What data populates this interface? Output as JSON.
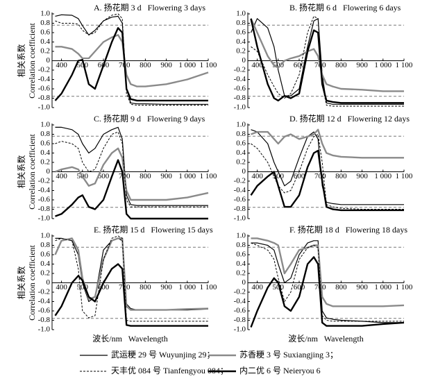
{
  "chart_data": [
    {
      "type": "line",
      "title": "A. 扬花期 3 d   Flowering 3 days",
      "ylabel_cn": "相关系数",
      "ylabel_en": "Correlation coefficient",
      "x": [
        370,
        400,
        450,
        480,
        500,
        530,
        560,
        600,
        640,
        670,
        690,
        710,
        730,
        760,
        800,
        900,
        1000,
        1100
      ],
      "series": [
        {
          "values": [
            0.95,
            0.98,
            0.97,
            0.9,
            0.75,
            0.55,
            0.65,
            0.85,
            0.93,
            0.95,
            0.8,
            -0.6,
            -0.9,
            -0.92,
            -0.92,
            -0.93,
            -0.93,
            -0.93
          ]
        },
        {
          "values": [
            0.3,
            0.3,
            0.25,
            0.15,
            0.05,
            0.05,
            0.2,
            0.4,
            0.5,
            0.55,
            0.4,
            -0.3,
            -0.5,
            -0.55,
            -0.55,
            -0.5,
            -0.4,
            -0.25
          ]
        },
        {
          "values": [
            0.85,
            0.8,
            0.8,
            0.78,
            0.65,
            0.55,
            0.6,
            0.85,
            0.97,
            1.0,
            0.9,
            -0.7,
            -0.93,
            -0.95,
            -0.95,
            -0.95,
            -0.95,
            -0.95
          ]
        },
        {
          "values": [
            -0.85,
            -0.7,
            -0.3,
            0.0,
            0.02,
            -0.5,
            -0.6,
            -0.1,
            0.4,
            0.7,
            0.6,
            -0.6,
            -0.82,
            -0.85,
            -0.85,
            -0.85,
            -0.85,
            -0.85
          ]
        }
      ],
      "ref_lines": [
        0.76,
        -0.76
      ],
      "xlim": [
        355,
        1100
      ],
      "ylim": [
        -1,
        1
      ],
      "xticks": [
        400,
        500,
        600,
        700,
        800,
        900,
        {
          "value": 1000,
          "label": "1 000"
        },
        {
          "value": 1100,
          "label": "1 100"
        }
      ],
      "yticks": [
        {
          "value": 1,
          "label": "1.0"
        },
        0.8,
        0.6,
        0.4,
        0.2,
        0,
        -0.2,
        -0.4,
        -0.6,
        -0.8,
        {
          "value": -1,
          "label": "-1.0"
        }
      ]
    },
    {
      "type": "line",
      "title": "B. 扬花期 6 d   Flowering 6 days",
      "x": [
        370,
        400,
        450,
        480,
        500,
        530,
        560,
        600,
        640,
        670,
        690,
        710,
        730,
        760,
        800,
        900,
        1000,
        1100
      ],
      "series": [
        {
          "values": [
            0.6,
            0.9,
            0.7,
            0.3,
            -0.2,
            -0.75,
            -0.75,
            -0.6,
            0.3,
            0.85,
            0.9,
            -0.3,
            -0.9,
            -0.93,
            -0.93,
            -0.93,
            -0.93,
            -0.93
          ]
        },
        {
          "values": [
            0.9,
            0.6,
            0.1,
            -0.1,
            -0.15,
            0.0,
            0.05,
            0.1,
            0.2,
            0.25,
            0.1,
            -0.3,
            -0.5,
            -0.55,
            -0.6,
            -0.62,
            -0.65,
            -0.65
          ]
        },
        {
          "values": [
            0.3,
            0.2,
            -0.3,
            -0.55,
            -0.7,
            -0.8,
            -0.7,
            -0.3,
            0.6,
            0.95,
            0.9,
            -0.5,
            -0.95,
            -0.97,
            -0.97,
            -0.97,
            -0.97,
            -0.97
          ]
        },
        {
          "values": [
            0.9,
            0.3,
            -0.5,
            -0.8,
            -0.85,
            -0.75,
            -0.8,
            -0.7,
            0.2,
            0.65,
            0.6,
            -0.5,
            -0.85,
            -0.88,
            -0.9,
            -0.9,
            -0.9,
            -0.9
          ]
        }
      ],
      "ref_lines": [
        0.76,
        -0.76
      ],
      "xlim": [
        355,
        1100
      ],
      "ylim": [
        -1,
        1
      ],
      "xticks": [
        400,
        500,
        600,
        700,
        800,
        900,
        {
          "value": 1000,
          "label": "1 000"
        },
        {
          "value": 1100,
          "label": "1 100"
        }
      ],
      "yticks": [
        {
          "value": 1,
          "label": "1.0"
        },
        0.8,
        0.6,
        0.4,
        0.2,
        0,
        -0.2,
        -0.4,
        -0.6,
        -0.8,
        {
          "value": -1,
          "label": "-1.0"
        }
      ]
    },
    {
      "type": "line",
      "title": "C. 扬花期 9 d   Flowering 9 days",
      "ylabel_cn": "相关系数",
      "ylabel_en": "Correlation coefficient",
      "x": [
        370,
        400,
        450,
        480,
        500,
        530,
        560,
        600,
        640,
        670,
        690,
        710,
        730,
        760,
        800,
        900,
        1000,
        1100
      ],
      "series": [
        {
          "values": [
            0.95,
            0.95,
            0.9,
            0.8,
            0.6,
            0.4,
            0.5,
            0.8,
            0.9,
            0.95,
            0.7,
            -0.5,
            -0.7,
            -0.72,
            -0.72,
            -0.72,
            -0.72,
            -0.72
          ]
        },
        {
          "values": [
            0.0,
            0.05,
            0.1,
            0.05,
            -0.1,
            -0.3,
            -0.25,
            0.15,
            0.4,
            0.5,
            0.3,
            -0.4,
            -0.6,
            -0.6,
            -0.6,
            -0.6,
            -0.55,
            -0.45
          ]
        },
        {
          "values": [
            0.6,
            0.65,
            0.6,
            0.5,
            0.2,
            0.0,
            0.05,
            0.5,
            0.8,
            0.85,
            0.6,
            -0.6,
            -0.75,
            -0.75,
            -0.75,
            -0.75,
            -0.75,
            -0.75
          ]
        },
        {
          "values": [
            -0.95,
            -0.9,
            -0.7,
            -0.55,
            -0.5,
            -0.75,
            -0.8,
            -0.6,
            -0.1,
            0.25,
            0.0,
            -0.9,
            -1.0,
            -1.0,
            -1.0,
            -1.0,
            -1.0,
            -1.0
          ]
        }
      ],
      "ref_lines": [
        0.76,
        -0.76
      ],
      "xlim": [
        355,
        1100
      ],
      "ylim": [
        -1,
        1
      ],
      "xticks": [
        400,
        500,
        600,
        700,
        800,
        900,
        {
          "value": 1000,
          "label": "1 000"
        },
        {
          "value": 1100,
          "label": "1 100"
        }
      ],
      "yticks": [
        {
          "value": 1,
          "label": "1.0"
        },
        0.8,
        0.6,
        0.4,
        0.2,
        0,
        -0.2,
        -0.4,
        -0.6,
        -0.8,
        {
          "value": -1,
          "label": "-1.0"
        }
      ]
    },
    {
      "type": "line",
      "title": "D. 扬花期 12 d   Flowering 12 days",
      "x": [
        370,
        400,
        450,
        480,
        500,
        530,
        560,
        600,
        640,
        670,
        690,
        710,
        730,
        760,
        800,
        900,
        1000,
        1100
      ],
      "series": [
        {
          "values": [
            0.9,
            0.85,
            0.6,
            0.2,
            0.0,
            -0.3,
            -0.2,
            0.3,
            0.75,
            0.85,
            0.7,
            -0.3,
            -0.65,
            -0.68,
            -0.7,
            -0.7,
            -0.7,
            -0.7
          ]
        },
        {
          "values": [
            0.8,
            0.85,
            0.85,
            0.7,
            0.6,
            0.75,
            0.8,
            0.7,
            0.75,
            0.8,
            0.9,
            0.6,
            0.4,
            0.35,
            0.32,
            0.3,
            0.3,
            0.3
          ]
        },
        {
          "values": [
            0.6,
            0.5,
            0.2,
            -0.1,
            -0.3,
            -0.45,
            -0.4,
            0.0,
            0.5,
            0.75,
            0.8,
            0.2,
            -0.7,
            -0.75,
            -0.78,
            -0.8,
            -0.8,
            -0.8
          ]
        },
        {
          "values": [
            -0.5,
            -0.3,
            -0.1,
            0.0,
            -0.3,
            -0.75,
            -0.75,
            -0.5,
            0.1,
            0.4,
            0.45,
            -0.2,
            -0.75,
            -0.8,
            -0.82,
            -0.82,
            -0.82,
            -0.82
          ]
        }
      ],
      "ref_lines": [
        0.76,
        -0.76
      ],
      "xlim": [
        355,
        1100
      ],
      "ylim": [
        -1,
        1
      ],
      "xticks": [
        400,
        500,
        600,
        700,
        800,
        900,
        {
          "value": 1000,
          "label": "1 000"
        },
        {
          "value": 1100,
          "label": "1 100"
        }
      ],
      "yticks": [
        {
          "value": 1,
          "label": "1.0"
        },
        0.8,
        0.6,
        0.4,
        0.2,
        0,
        -0.2,
        -0.4,
        -0.6,
        -0.8,
        {
          "value": -1,
          "label": "-1.0"
        }
      ]
    },
    {
      "type": "line",
      "title": "E. 扬花期 15 d   Flowering 15 days",
      "ylabel_cn": "相关系数",
      "ylabel_en": "Correlation coefficient",
      "xlabel": "波长/nm   Wavelength",
      "x": [
        370,
        400,
        450,
        480,
        500,
        530,
        560,
        600,
        640,
        670,
        690,
        710,
        730,
        760,
        800,
        900,
        1000,
        1100
      ],
      "series": [
        {
          "values": [
            0.95,
            0.95,
            0.9,
            0.6,
            0.0,
            -0.4,
            -0.3,
            0.7,
            0.9,
            0.95,
            0.9,
            -0.45,
            -0.55,
            -0.58,
            -0.58,
            -0.58,
            -0.58,
            -0.56
          ]
        },
        {
          "values": [
            0.6,
            0.9,
            0.95,
            0.7,
            0.1,
            -0.35,
            -0.3,
            0.5,
            0.9,
            0.95,
            0.95,
            -0.5,
            -0.58,
            -0.58,
            -0.58,
            -0.58,
            -0.56,
            -0.55
          ]
        },
        {
          "values": [
            0.9,
            0.95,
            0.9,
            0.3,
            -0.6,
            -0.75,
            -0.7,
            0.5,
            0.95,
            1.0,
            0.95,
            -0.8,
            -0.82,
            -0.82,
            -0.82,
            -0.82,
            -0.82,
            -0.82
          ]
        },
        {
          "values": [
            -0.7,
            -0.5,
            0.0,
            0.15,
            0.05,
            -0.3,
            -0.4,
            0.0,
            0.3,
            0.4,
            0.3,
            -0.9,
            -0.92,
            -0.92,
            -0.92,
            -0.92,
            -0.92,
            -0.92
          ]
        }
      ],
      "ref_lines": [
        0.76,
        -0.76
      ],
      "xlim": [
        355,
        1100
      ],
      "ylim": [
        -1,
        1
      ],
      "xticks": [
        400,
        500,
        600,
        700,
        800,
        900,
        {
          "value": 1000,
          "label": "1 000"
        },
        {
          "value": 1100,
          "label": "1 100"
        }
      ],
      "yticks": [
        {
          "value": 1,
          "label": "1.0"
        },
        0.8,
        0.6,
        0.4,
        0.2,
        0,
        -0.2,
        -0.4,
        -0.6,
        -0.8,
        {
          "value": -1,
          "label": "-1.0"
        }
      ]
    },
    {
      "type": "line",
      "title": "F. 扬花期 18 d   Flowering 18 days",
      "xlabel": "波长/nm   Wavelength",
      "x": [
        370,
        400,
        450,
        480,
        500,
        530,
        560,
        600,
        640,
        670,
        690,
        710,
        730,
        760,
        800,
        900,
        1000,
        1100
      ],
      "series": [
        {
          "values": [
            0.85,
            0.85,
            0.8,
            0.7,
            0.4,
            0.0,
            0.1,
            0.6,
            0.85,
            0.9,
            0.9,
            -0.6,
            -0.75,
            -0.78,
            -0.8,
            -0.82,
            -0.85,
            -0.85
          ]
        },
        {
          "values": [
            0.95,
            0.95,
            0.9,
            0.85,
            0.8,
            0.2,
            0.4,
            0.7,
            0.75,
            0.8,
            0.8,
            -0.3,
            -0.45,
            -0.5,
            -0.5,
            -0.5,
            -0.5,
            -0.48
          ]
        },
        {
          "values": [
            0.85,
            0.8,
            0.7,
            0.5,
            0.1,
            -0.4,
            -0.2,
            0.5,
            0.75,
            0.8,
            0.75,
            -0.7,
            -0.8,
            -0.82,
            -0.82,
            -0.82,
            -0.82,
            -0.82
          ]
        },
        {
          "values": [
            -0.95,
            -0.6,
            -0.1,
            0.1,
            0.0,
            -0.5,
            -0.6,
            -0.3,
            0.4,
            0.55,
            0.4,
            -0.85,
            -0.92,
            -0.92,
            -0.92,
            -0.92,
            -0.88,
            -0.85
          ]
        }
      ],
      "ref_lines": [
        0.76,
        -0.76
      ],
      "xlim": [
        355,
        1100
      ],
      "ylim": [
        -1,
        1
      ],
      "xticks": [
        400,
        500,
        600,
        700,
        800,
        900,
        {
          "value": 1000,
          "label": "1 000"
        },
        {
          "value": 1100,
          "label": "1 100"
        }
      ],
      "yticks": [
        {
          "value": 1,
          "label": "1.0"
        },
        0.8,
        0.6,
        0.4,
        0.2,
        0,
        -0.2,
        -0.4,
        -0.6,
        -0.8,
        {
          "value": -1,
          "label": "-1.0"
        }
      ]
    }
  ],
  "legend": [
    {
      "name": "武运粳 29 号 Wuyunjing 29；",
      "color": "#000000",
      "width": 1.2,
      "dash": "none"
    },
    {
      "name": "苏香粳 3 号 Suxiangjing 3；",
      "color": "#8a8a8a",
      "width": 2.4,
      "dash": "none"
    },
    {
      "name": "天丰优 084 号 Tianfengyou 084；",
      "color": "#000000",
      "width": 1,
      "dash": "3 2"
    },
    {
      "name": "内二优 6 号 Neieryou 6",
      "color": "#000000",
      "width": 2.4,
      "dash": "none"
    }
  ]
}
